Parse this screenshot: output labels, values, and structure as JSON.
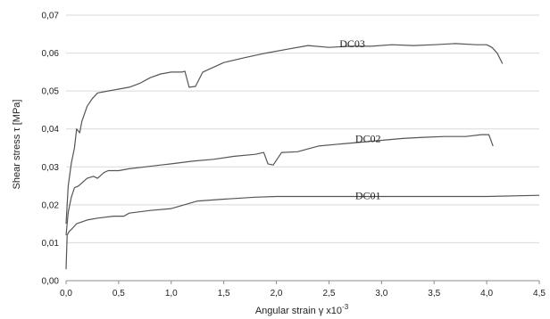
{
  "chart_data": {
    "type": "line",
    "xlabel": "Angular strain γ x10",
    "xlabel_exponent": "-3",
    "ylabel": "Shear stress τ [MPa]",
    "xlim": [
      0,
      4.5
    ],
    "ylim": [
      0,
      0.07
    ],
    "grid": "horizontal",
    "x_ticks": [
      "0,0",
      "0,5",
      "1,0",
      "1,5",
      "2,0",
      "2,5",
      "3,0",
      "3,5",
      "4,0",
      "4,5"
    ],
    "y_ticks": [
      "0,00",
      "0,01",
      "0,02",
      "0,03",
      "0,04",
      "0,05",
      "0,06",
      "0,07"
    ],
    "series": [
      {
        "name": "DC01",
        "color": "#555555",
        "x": [
          0.0,
          0.01,
          0.03,
          0.05,
          0.1,
          0.2,
          0.3,
          0.45,
          0.55,
          0.6,
          0.8,
          1.0,
          1.1,
          1.25,
          1.5,
          1.8,
          2.0,
          2.5,
          3.0,
          3.5,
          4.0,
          4.5
        ],
        "y": [
          0.003,
          0.012,
          0.013,
          0.0135,
          0.015,
          0.016,
          0.0165,
          0.017,
          0.017,
          0.0178,
          0.0185,
          0.019,
          0.0198,
          0.021,
          0.0215,
          0.022,
          0.0222,
          0.0222,
          0.0222,
          0.0222,
          0.0222,
          0.0225
        ]
      },
      {
        "name": "DC02",
        "color": "#555555",
        "x": [
          0.0,
          0.02,
          0.05,
          0.08,
          0.12,
          0.16,
          0.2,
          0.26,
          0.3,
          0.36,
          0.4,
          0.5,
          0.6,
          0.75,
          0.9,
          1.0,
          1.2,
          1.4,
          1.6,
          1.8,
          1.88,
          1.92,
          1.97,
          2.05,
          2.2,
          2.4,
          2.6,
          2.8,
          3.0,
          3.2,
          3.4,
          3.6,
          3.8,
          3.95,
          4.02,
          4.06
        ],
        "y": [
          0.012,
          0.018,
          0.022,
          0.0245,
          0.025,
          0.026,
          0.027,
          0.0275,
          0.027,
          0.0285,
          0.029,
          0.029,
          0.0295,
          0.03,
          0.0305,
          0.0308,
          0.0315,
          0.032,
          0.0328,
          0.0333,
          0.0338,
          0.0308,
          0.0305,
          0.0338,
          0.034,
          0.0355,
          0.036,
          0.0365,
          0.037,
          0.0375,
          0.0378,
          0.038,
          0.038,
          0.0385,
          0.0385,
          0.0355
        ]
      },
      {
        "name": "DC03",
        "color": "#555555",
        "x": [
          0.0,
          0.02,
          0.05,
          0.08,
          0.1,
          0.13,
          0.15,
          0.2,
          0.25,
          0.3,
          0.4,
          0.5,
          0.6,
          0.7,
          0.8,
          0.9,
          1.0,
          1.1,
          1.13,
          1.17,
          1.23,
          1.3,
          1.5,
          1.7,
          1.9,
          2.1,
          2.3,
          2.5,
          2.7,
          2.9,
          3.1,
          3.3,
          3.5,
          3.7,
          3.9,
          4.0,
          4.05,
          4.1,
          4.15
        ],
        "y": [
          0.015,
          0.025,
          0.031,
          0.035,
          0.04,
          0.039,
          0.042,
          0.046,
          0.048,
          0.0495,
          0.05,
          0.0505,
          0.051,
          0.052,
          0.0535,
          0.0545,
          0.055,
          0.055,
          0.0552,
          0.051,
          0.0512,
          0.055,
          0.0575,
          0.0588,
          0.06,
          0.061,
          0.062,
          0.0615,
          0.0618,
          0.0618,
          0.0622,
          0.062,
          0.0622,
          0.0625,
          0.0622,
          0.0622,
          0.0615,
          0.06,
          0.0572
        ]
      }
    ],
    "annotations": [
      {
        "text": "DC03",
        "x": 2.6,
        "y": 0.0615
      },
      {
        "text": "DC02",
        "x": 2.75,
        "y": 0.0365
      },
      {
        "text": "DC01",
        "x": 2.75,
        "y": 0.0215
      }
    ]
  }
}
